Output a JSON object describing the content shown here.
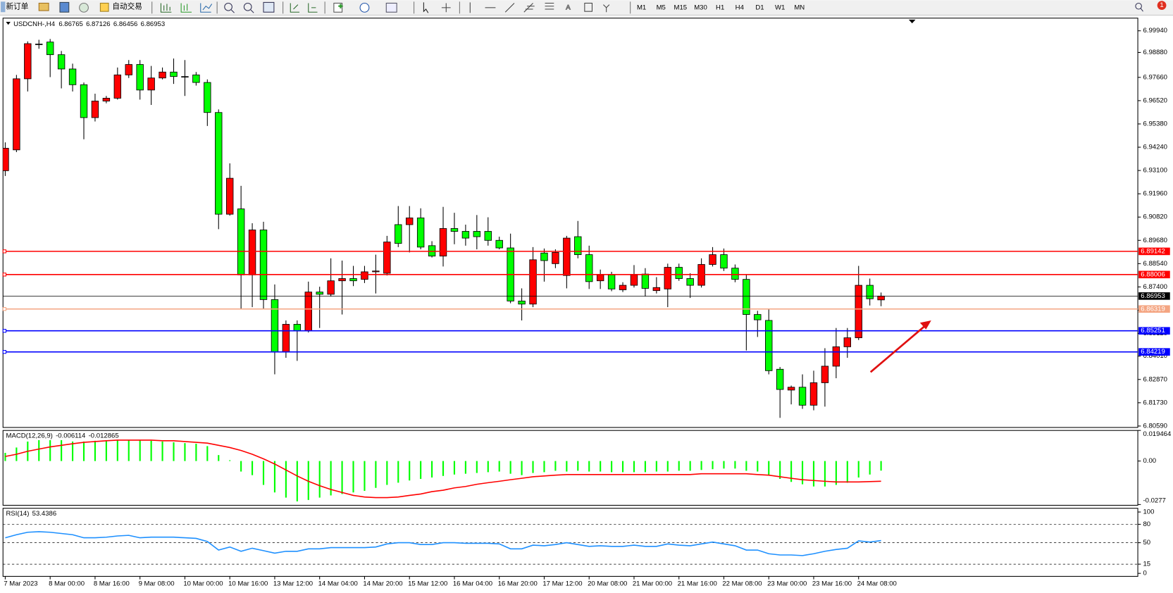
{
  "toolbar": {
    "buttons": [
      "新订单",
      "自动交易"
    ],
    "timeframes": [
      "M1",
      "M5",
      "M15",
      "M30",
      "H1",
      "H4",
      "D1",
      "W1",
      "MN"
    ],
    "notification_count": 1
  },
  "chart_data": {
    "type": "candlestick",
    "symbol_label": "USDCNH-,H4",
    "categories": [
      "7 Mar 2023",
      null,
      null,
      null,
      "8 Mar 00:00",
      null,
      null,
      null,
      "8 Mar 16:00",
      null,
      null,
      null,
      "9 Mar 08:00",
      null,
      null,
      null,
      "10 Mar 00:00",
      null,
      null,
      null,
      "10 Mar 16:00",
      null,
      null,
      null,
      "13 Mar 12:00",
      null,
      null,
      null,
      "14 Mar 04:00",
      null,
      null,
      null,
      "14 Mar 20:00",
      null,
      null,
      null,
      "15 Mar 12:00",
      null,
      null,
      null,
      "16 Mar 04:00",
      null,
      null,
      null,
      "16 Mar 20:00",
      null,
      null,
      null,
      "17 Mar 12:00",
      null,
      null,
      null,
      "20 Mar 08:00",
      null,
      null,
      null,
      "21 Mar 00:00",
      null,
      null,
      null,
      "21 Mar 16:00",
      null,
      null,
      null,
      "22 Mar 08:00",
      null,
      null,
      null,
      "23 Mar 00:00",
      null,
      null,
      null,
      "23 Mar 16:00",
      null,
      null,
      null,
      "24 Mar 08:00",
      null,
      null
    ],
    "open": [
      6.9309,
      6.9411,
      6.9759,
      6.9929,
      6.9939,
      6.9877,
      6.9807,
      6.973,
      6.9569,
      6.965,
      6.9664,
      6.9778,
      6.9829,
      6.9704,
      6.9763,
      6.9792,
      6.977,
      6.9778,
      6.9741,
      6.9594,
      6.9096,
      6.9122,
      6.8799,
      6.9019,
      6.8678,
      6.8422,
      6.8557,
      6.8524,
      6.8715,
      6.8704,
      6.877,
      6.8781,
      6.8777,
      6.8814,
      6.8807,
      6.9045,
      6.9045,
      6.9078,
      6.8942,
      6.8891,
      6.9026,
      6.9012,
      6.9012,
      6.9012,
      6.8968,
      6.8931,
      6.8671,
      6.8656,
      6.8906,
      6.8854,
      6.8796,
      6.8986,
      6.8898,
      6.877,
      6.8799,
      6.8726,
      6.8748,
      6.8803,
      6.8722,
      6.873,
      6.8836,
      6.8781,
      6.8748,
      6.885,
      6.8898,
      6.8832,
      6.8777,
      6.8605,
      6.8576,
      6.8337,
      6.8235,
      6.8249,
      6.8161,
      6.8271,
      6.8352,
      6.8447,
      6.8491,
      6.8748,
      6.86765
    ],
    "high": [
      6.9448,
      6.9778,
      6.9942,
      6.995,
      6.9954,
      6.9895,
      6.9833,
      6.9741,
      6.9686,
      6.9675,
      6.9814,
      6.9851,
      6.9851,
      6.9822,
      6.9814,
      6.9858,
      6.9851,
      6.9792,
      6.9756,
      6.9609,
      6.9345,
      6.9235,
      6.9052,
      6.9059,
      6.8752,
      6.8576,
      6.8576,
      6.8766,
      6.8741,
      6.888,
      6.8869,
      6.8843,
      6.8843,
      6.8898,
      6.899,
      6.9136,
      6.9136,
      6.9125,
      6.8964,
      6.9132,
      6.9103,
      6.9045,
      6.9092,
      6.9081,
      6.8986,
      6.9001,
      6.8733,
      6.8935,
      6.8928,
      6.8924,
      6.899,
      6.9063,
      6.8942,
      6.8825,
      6.8814,
      6.8763,
      6.8847,
      6.8832,
      6.8788,
      6.8854,
      6.8854,
      6.8807,
      6.888,
      6.8935,
      6.8928,
      6.885,
      6.8803,
      6.8623,
      6.8634,
      6.8348,
      6.8257,
      6.8312,
      6.833,
      6.844,
      6.8539,
      6.8539,
      6.8843,
      6.8781,
      6.87126
    ],
    "low": [
      6.9283,
      6.94,
      6.9697,
      6.9906,
      6.9767,
      6.9712,
      6.9697,
      6.9463,
      6.955,
      6.9639,
      6.9657,
      6.9763,
      6.9657,
      6.9631,
      6.9756,
      6.9734,
      6.9675,
      6.9726,
      6.9528,
      6.9023,
      6.9089,
      6.8634,
      6.8641,
      6.8634,
      6.8312,
      6.8393,
      6.8378,
      6.8517,
      6.8539,
      6.8693,
      6.8605,
      6.8744,
      6.8759,
      6.8708,
      6.8796,
      6.8935,
      6.8909,
      6.8924,
      6.8884,
      6.884,
      6.8949,
      6.8942,
      6.8924,
      6.8942,
      6.8924,
      6.866,
      6.8576,
      6.8641,
      6.8766,
      6.8832,
      6.8733,
      6.888,
      6.873,
      6.873,
      6.8719,
      6.8715,
      6.8737,
      6.8693,
      6.8708,
      6.8641,
      6.877,
      6.8686,
      6.8737,
      6.884,
      6.8818,
      6.8763,
      6.8429,
      6.8495,
      6.8312,
      6.8099,
      6.8165,
      6.8143,
      6.8136,
      6.8154,
      6.8293,
      6.8393,
      6.848,
      6.8649,
      6.86456
    ],
    "close": [
      6.9419,
      6.9759,
      6.9931,
      6.9927,
      6.9877,
      6.9807,
      6.973,
      6.9569,
      6.965,
      6.9664,
      6.9778,
      6.9829,
      6.9704,
      6.9763,
      6.9792,
      6.977,
      6.9768,
      6.9741,
      6.9594,
      6.9096,
      6.9272,
      6.8799,
      6.9019,
      6.8678,
      6.8422,
      6.8557,
      6.8524,
      6.8715,
      6.8704,
      6.877,
      6.8781,
      6.877,
      6.8814,
      6.8818,
      6.896,
      6.8953,
      6.9078,
      6.8935,
      6.8891,
      6.9026,
      6.9012,
      6.8979,
      6.8986,
      6.8968,
      6.8931,
      6.8671,
      6.8656,
      6.8873,
      6.8869,
      6.8909,
      6.8979,
      6.8898,
      6.8766,
      6.8799,
      6.873,
      6.8748,
      6.8799,
      6.8733,
      6.8737,
      6.8836,
      6.8781,
      6.8748,
      6.885,
      6.8898,
      6.8832,
      6.8777,
      6.8605,
      6.8579,
      6.833,
      6.8238,
      6.8249,
      6.8161,
      6.8271,
      6.8352,
      6.8447,
      6.8491,
      6.8748,
      6.8682,
      6.86953
    ],
    "up_color": "#ff0000",
    "down_color": "#00ff00",
    "wick_color": "#000000",
    "ylim": [
      6.8052,
      7.0056
    ],
    "yticks": [
      {
        "value": 6.9994,
        "label": "6.99940"
      },
      {
        "value": 6.9888,
        "label": "6.98880"
      },
      {
        "value": 6.9766,
        "label": "6.97660"
      },
      {
        "value": 6.9652,
        "label": "6.96520"
      },
      {
        "value": 6.9538,
        "label": "6.95380"
      },
      {
        "value": 6.9424,
        "label": "6.94240"
      },
      {
        "value": 6.931,
        "label": "6.93100"
      },
      {
        "value": 6.9196,
        "label": "6.91960"
      },
      {
        "value": 6.9082,
        "label": "6.90820"
      },
      {
        "value": 6.8968,
        "label": "6.89680"
      },
      {
        "value": 6.8854,
        "label": "6.88540"
      },
      {
        "value": 6.874,
        "label": "6.87400"
      },
      {
        "value": 6.8626,
        "label": "6.86260"
      },
      {
        "value": 6.8512,
        "label": "6.85120"
      },
      {
        "value": 6.8401,
        "label": "6.84010"
      },
      {
        "value": 6.8287,
        "label": "6.82870"
      },
      {
        "value": 6.8173,
        "label": "6.81730"
      },
      {
        "value": 6.8059,
        "label": "6.80590"
      }
    ],
    "levels": [
      {
        "value": 6.89142,
        "color": "#ff0000"
      },
      {
        "value": 6.88006,
        "color": "#ff0000"
      },
      {
        "value": 6.86319,
        "color": "#f4a582"
      },
      {
        "value": 6.85251,
        "color": "#0000ff"
      },
      {
        "value": 6.84219,
        "color": "#0000ff"
      }
    ],
    "current_price_color": "#000000",
    "macd": {
      "label": "MACD(12,26,9)",
      "histogram": [
        0.0052,
        0.0086,
        0.0124,
        0.0133,
        0.0133,
        0.0133,
        0.0124,
        0.0124,
        0.0129,
        0.0133,
        0.0133,
        0.0133,
        0.0133,
        0.0129,
        0.0124,
        0.0119,
        0.0114,
        0.011,
        0.0095,
        0.0038,
        0.0005,
        -0.0067,
        -0.009,
        -0.0152,
        -0.02,
        -0.0233,
        -0.0257,
        -0.0248,
        -0.0233,
        -0.0219,
        -0.021,
        -0.02,
        -0.019,
        -0.0171,
        -0.0152,
        -0.0138,
        -0.0124,
        -0.0114,
        -0.0105,
        -0.0095,
        -0.0086,
        -0.0081,
        -0.0076,
        -0.0071,
        -0.0067,
        -0.0081,
        -0.009,
        -0.0076,
        -0.0071,
        -0.0062,
        -0.0067,
        -0.0062,
        -0.0067,
        -0.0067,
        -0.0071,
        -0.0071,
        -0.0071,
        -0.0071,
        -0.0067,
        -0.0067,
        -0.0062,
        -0.0062,
        -0.0057,
        -0.0052,
        -0.0048,
        -0.0048,
        -0.0062,
        -0.0067,
        -0.009,
        -0.0114,
        -0.0133,
        -0.0148,
        -0.0162,
        -0.0162,
        -0.0152,
        -0.0138,
        -0.0105,
        -0.0086,
        -0.006114
      ],
      "signal": [
        0.0029,
        0.0043,
        0.0062,
        0.0076,
        0.009,
        0.01,
        0.011,
        0.0119,
        0.0124,
        0.0129,
        0.0133,
        0.0133,
        0.0133,
        0.0133,
        0.0129,
        0.0129,
        0.0124,
        0.0119,
        0.0114,
        0.01,
        0.0086,
        0.0067,
        0.0043,
        0.0014,
        -0.0019,
        -0.0057,
        -0.0095,
        -0.0129,
        -0.0157,
        -0.0181,
        -0.02,
        -0.0219,
        -0.0229,
        -0.0233,
        -0.0233,
        -0.0229,
        -0.0219,
        -0.021,
        -0.0195,
        -0.0186,
        -0.0171,
        -0.0162,
        -0.0148,
        -0.0138,
        -0.0129,
        -0.0119,
        -0.011,
        -0.01,
        -0.0095,
        -0.009,
        -0.0086,
        -0.0086,
        -0.0086,
        -0.0086,
        -0.0086,
        -0.0086,
        -0.0086,
        -0.0086,
        -0.0086,
        -0.0086,
        -0.0086,
        -0.0086,
        -0.0081,
        -0.0081,
        -0.0081,
        -0.0081,
        -0.0081,
        -0.0086,
        -0.009,
        -0.01,
        -0.011,
        -0.0119,
        -0.0124,
        -0.0129,
        -0.0133,
        -0.0133,
        -0.0133,
        -0.0131,
        -0.012865
      ],
      "histogram_color": "#00ff00",
      "signal_color": "#ff0000",
      "ylim": [
        -0.0277,
        0.019464
      ],
      "yticks": [
        0.019464,
        {
          "value": 0,
          "label": "0.00"
        },
        -0.0277
      ]
    },
    "rsi": {
      "label": "RSI(14)",
      "values": [
        58,
        63,
        67,
        68,
        67,
        65,
        63,
        58,
        58,
        59,
        61,
        62,
        58,
        59,
        59,
        59,
        58,
        57,
        52,
        38,
        43,
        36,
        41,
        37,
        33,
        36,
        36,
        40,
        40,
        42,
        42,
        42,
        42,
        43,
        48,
        50,
        50,
        47,
        47,
        50,
        50,
        49,
        49,
        49,
        48,
        40,
        40,
        46,
        45,
        47,
        50,
        47,
        44,
        45,
        44,
        44,
        46,
        44,
        44,
        48,
        46,
        45,
        48,
        51,
        48,
        45,
        38,
        38,
        32,
        30,
        30,
        29,
        32,
        36,
        39,
        41,
        53,
        51,
        53.4386
      ],
      "color": "#1e90ff",
      "ylim": [
        0,
        100
      ],
      "yticks": [
        100,
        80,
        50,
        15,
        0
      ]
    }
  }
}
